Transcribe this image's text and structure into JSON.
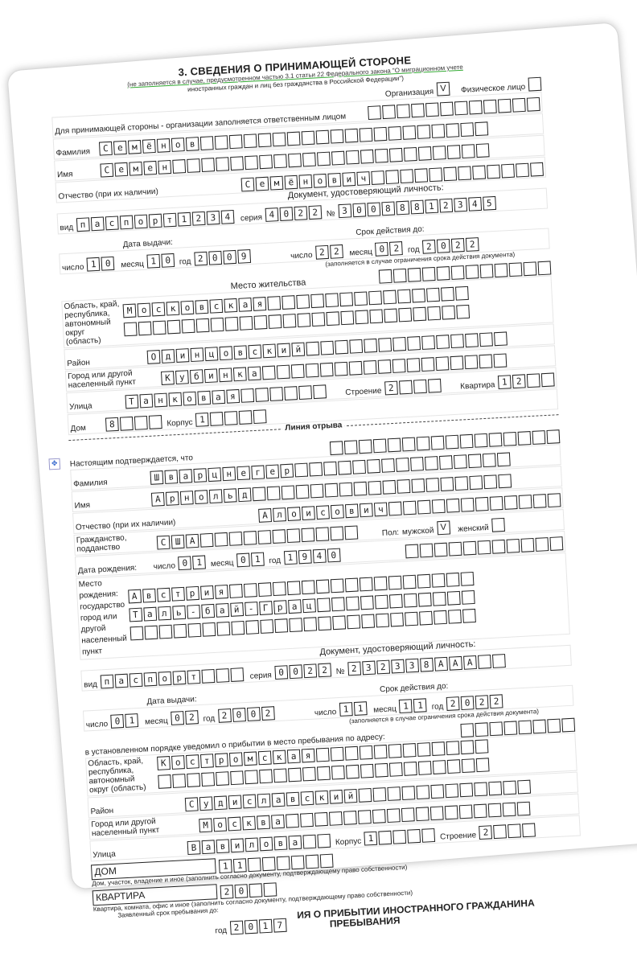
{
  "section3": {
    "title": "3. СВЕДЕНИЯ О ПРИНИМАЮЩЕЙ СТОРОНЕ",
    "note_line1": "(не заполняется в случае, предусмотренном частью 3.1 статьи 22 Федерального закона \"О миграционном учете",
    "note_line2": "иностранных граждан и лиц без гражданства в Российской Федерации\")",
    "organization_label": "Организация",
    "organization_mark": "V",
    "individual_label": "Физическое лицо",
    "individual_mark": "",
    "responsible_label": "Для принимающей стороны - организации заполняется ответственным лицом",
    "surname_label": "Фамилия",
    "surname": "Семёнов",
    "name_label": "Имя",
    "name": "Семен",
    "patronymic_label": "Отчество (при их наличии)",
    "patronymic": "Семёнович",
    "doc_heading": "Документ, удостоверяющий личность:",
    "doc_type_label": "вид",
    "doc_type": "паспорт1234",
    "series_label": "серия",
    "series": "4022",
    "number_label": "№",
    "number": "30088812345",
    "issue_label": "Дата выдачи:",
    "day_label": "число",
    "month_label": "месяц",
    "year_label": "год",
    "issue_day": "10",
    "issue_month": "10",
    "issue_year": "2009",
    "valid_label": "Срок действия до:",
    "valid_day": "22",
    "valid_month": "02",
    "valid_year": "2022",
    "valid_note": "(заполняется в случае ограничения срока действия документа)",
    "residence_heading": "Место жительства",
    "region_label": "Область, край, республика, автономный округ (область)",
    "region": "Московская",
    "district_label": "Район",
    "district": "Одинцовский",
    "city_label": "Город или другой населенный пункт",
    "city": "Кубинка",
    "street_label": "Улица",
    "street": "Танковая",
    "house_label": "Дом",
    "house": "8",
    "korpus_label": "Корпус",
    "korpus": "1",
    "building_label": "Строение",
    "building": "2",
    "flat_label": "Квартира",
    "flat": "12"
  },
  "tear_line": "Линия отрыва",
  "stub": {
    "confirm_text": "Настоящим подтверждается, что",
    "surname_label": "Фамилия",
    "surname": "Шварцнегер",
    "name_label": "Имя",
    "name": "Арнольд",
    "patronymic_label": "Отчество (при их наличии)",
    "patronymic": "Алоисович",
    "citizenship_label": "Гражданство, подданство",
    "citizenship": "США",
    "sex_label": "Пол:",
    "male_label": "мужской",
    "male_mark": "V",
    "female_label": "женский",
    "female_mark": "",
    "birth_label": "Дата рождения:",
    "birth_day": "01",
    "birth_month": "01",
    "birth_year": "1940",
    "birthplace_label": "Место рождения: государство город или другой населенный пункт",
    "birth_country": "Австрия",
    "birth_city": "Таль-бай-Грац",
    "doc_heading": "Документ, удостоверяющий личность:",
    "doc_type": "паспорт",
    "series": "0022",
    "number": "232338AAA",
    "issue_day": "01",
    "issue_month": "02",
    "issue_year": "2002",
    "valid_day": "11",
    "valid_month": "11",
    "valid_year": "2022",
    "notified_text": "в установленном порядке уведомил о прибытии в место пребывания по адресу:",
    "region": "Костромская",
    "district": "Судиславский",
    "city": "Москва",
    "street": "Вавилова",
    "korpus": "1",
    "building": "2",
    "house_type": "ДОМ",
    "house": "11",
    "house_note": "Дом, участок, владение и иное (заполнить согласно документу, подтверждающему право собственности)",
    "flat_type": "КВАРТИРА",
    "flat": "20",
    "flat_note": "Квартира, комната, офис и иное (заполнить согласно документу, подтверждающему право собственности)",
    "stay_label": "Заявленный срок пребывания до:",
    "stay_year": "2017",
    "next_title1": "ИЯ О ПРИБЫТИИ ИНОСТРАННОГО ГРАЖДАНИНА",
    "next_title2": "ПРЕБЫВАНИЯ"
  }
}
